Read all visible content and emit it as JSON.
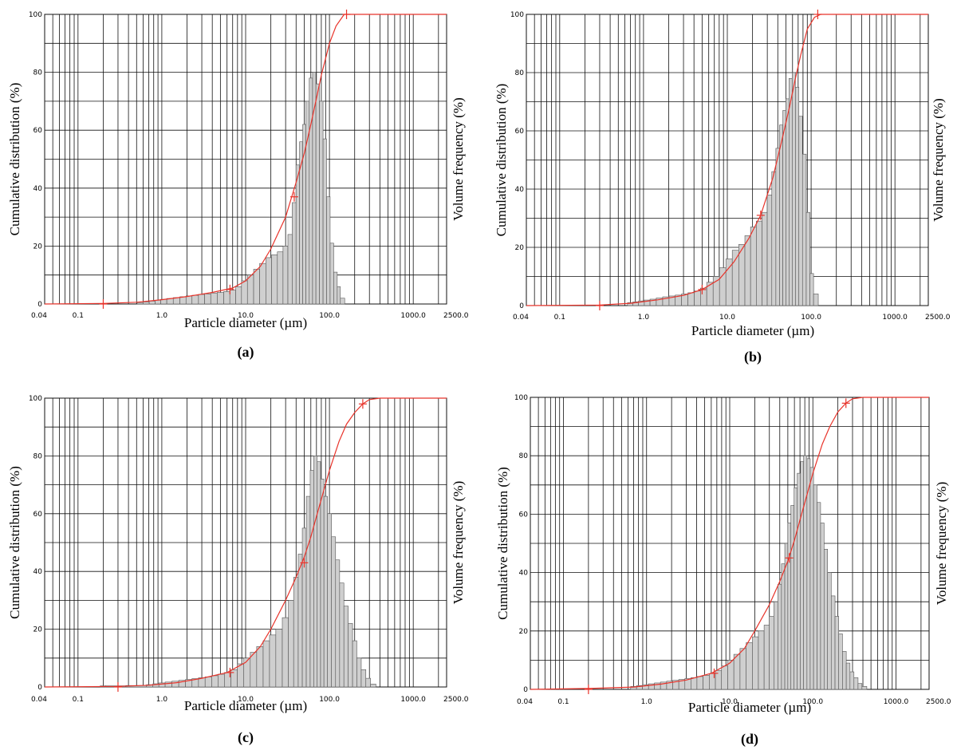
{
  "figure": {
    "panels": [
      "(a)",
      "(b)",
      "(c)",
      "(d)"
    ]
  },
  "chart_data": [
    {
      "label": "(a)",
      "type": "bar",
      "xscale": "log",
      "xlim": [
        0.04,
        2500.0
      ],
      "ylim": [
        0,
        100
      ],
      "xlabel": "Particle diameter (µm)",
      "ylabel": "Cumulative distribution (%)",
      "y2label": "Volume frequency (%)",
      "xticklabels": [
        "0.04",
        "0.1",
        "1.0",
        "10.0",
        "100.0",
        "1000.0",
        "2500.0"
      ],
      "yticklabels": [
        "0",
        "20",
        "40",
        "60",
        "80",
        "100"
      ],
      "grid": true,
      "bars": {
        "x": [
          0.55,
          0.65,
          0.77,
          0.9,
          1.05,
          1.25,
          1.5,
          1.8,
          2.1,
          2.5,
          3.0,
          3.5,
          4.2,
          5.0,
          6.0,
          7.0,
          8.3,
          9.6,
          11.5,
          13.5,
          16,
          19,
          22,
          26,
          30,
          34,
          38,
          42,
          46,
          50,
          55,
          60,
          66,
          72,
          80,
          88,
          97,
          107,
          118,
          130,
          140
        ],
        "values": [
          0.5,
          0.7,
          1,
          1.3,
          1.6,
          1.9,
          2.2,
          2.5,
          2.8,
          3,
          3.3,
          3.5,
          3.8,
          4,
          4.3,
          4.8,
          6,
          8,
          10,
          12,
          14,
          16,
          17,
          18,
          20,
          24,
          35,
          48,
          56,
          62,
          70,
          78,
          80,
          76,
          70,
          57,
          37,
          21,
          11,
          6,
          2
        ]
      },
      "cumulative": {
        "x": [
          0.04,
          0.2,
          0.5,
          1,
          2,
          4,
          7,
          10,
          15,
          20,
          30,
          40,
          50,
          60,
          70,
          80,
          100,
          120,
          150,
          200,
          2500
        ],
        "y": [
          0,
          0.2,
          0.6,
          1.5,
          2.6,
          4,
          5.5,
          8,
          13,
          19,
          30,
          42,
          52,
          62,
          71,
          79,
          90,
          96,
          100,
          100,
          100
        ]
      },
      "markers": {
        "x": [
          0.2,
          6.5,
          38,
          160
        ],
        "y": [
          0,
          5,
          37,
          100
        ]
      }
    },
    {
      "label": "(b)",
      "type": "bar",
      "xscale": "log",
      "xlim": [
        0.04,
        2500.0
      ],
      "ylim": [
        0,
        100
      ],
      "xlabel": "Particle diameter (µm)",
      "ylabel": "Cumulative distribution (%)",
      "y2label": "Volume frequency (%)",
      "xticklabels": [
        "0.04",
        "0.1",
        "1.0",
        "10.0",
        "100.0",
        "1000.0",
        "2500.0"
      ],
      "yticklabels": [
        "0",
        "20",
        "40",
        "60",
        "80",
        "100"
      ],
      "grid": true,
      "bars": {
        "x": [
          0.7,
          0.8,
          0.95,
          1.1,
          1.3,
          1.55,
          1.85,
          2.2,
          2.6,
          3.1,
          3.7,
          4.4,
          5.2,
          6.2,
          7.4,
          8.8,
          10.5,
          12.5,
          15,
          17.5,
          20.5,
          24,
          28,
          32,
          36,
          40,
          44,
          48,
          52,
          57,
          62,
          68,
          75,
          83,
          92,
          102,
          112
        ],
        "values": [
          1,
          1.3,
          1.6,
          1.9,
          2.2,
          2.6,
          3,
          3.3,
          3.6,
          4,
          4.4,
          5,
          6,
          8,
          10,
          13,
          16,
          19,
          21,
          24,
          27,
          29,
          32,
          38,
          46,
          54,
          62,
          67,
          71,
          78,
          80,
          75,
          65,
          52,
          32,
          11,
          4
        ]
      },
      "cumulative": {
        "x": [
          0.04,
          0.3,
          0.7,
          1.5,
          3,
          5,
          8,
          12,
          18,
          25,
          35,
          45,
          55,
          65,
          75,
          90,
          110,
          130,
          2500
        ],
        "y": [
          0,
          0.2,
          0.8,
          2,
          3.5,
          5.5,
          9,
          15,
          23,
          31,
          44,
          57,
          68,
          78,
          86,
          95,
          99,
          100,
          100
        ]
      },
      "markers": {
        "x": [
          0.3,
          5,
          25,
          120
        ],
        "y": [
          0,
          5.5,
          31,
          100
        ]
      }
    },
    {
      "label": "(c)",
      "type": "bar",
      "xscale": "log",
      "xlim": [
        0.04,
        2500.0
      ],
      "ylim": [
        0,
        100
      ],
      "xlabel": "Particle diameter (µm)",
      "ylabel": "Cumulative distribution (%)",
      "y2label": "Volume frequency (%)",
      "xticklabels": [
        "0.04",
        "0.1",
        "1.0",
        "10.0",
        "100.0",
        "1000.0",
        "2500.0"
      ],
      "yticklabels": [
        "0",
        "20",
        "40",
        "60",
        "80",
        "100"
      ],
      "grid": true,
      "bars": {
        "x": [
          0.2,
          0.23,
          0.6,
          0.72,
          0.85,
          1.0,
          1.2,
          1.45,
          1.75,
          2.1,
          2.5,
          3.0,
          3.6,
          4.3,
          5.1,
          6.1,
          7.3,
          8.7,
          10.4,
          12.4,
          14.8,
          17.7,
          21,
          25,
          30,
          35,
          40,
          45,
          50,
          56,
          62,
          68,
          75,
          82,
          90,
          100,
          112,
          125,
          140,
          158,
          178,
          200,
          225,
          255,
          290,
          330
        ],
        "values": [
          0.4,
          0.4,
          0.5,
          0.8,
          1.1,
          1.4,
          1.7,
          2,
          2.3,
          2.6,
          2.9,
          3.2,
          3.5,
          3.9,
          4.4,
          5,
          6,
          8,
          10,
          12,
          14,
          16,
          18,
          20,
          24,
          30,
          38,
          46,
          55,
          66,
          75,
          80,
          78,
          72,
          66,
          60,
          52,
          44,
          36,
          28,
          22,
          16,
          10,
          6,
          3,
          1
        ]
      },
      "cumulative": {
        "x": [
          0.04,
          0.3,
          0.7,
          1.5,
          3,
          6,
          10,
          15,
          20,
          30,
          40,
          50,
          60,
          70,
          80,
          100,
          130,
          160,
          200,
          250,
          300,
          400,
          2500
        ],
        "y": [
          0,
          0.2,
          0.6,
          1.5,
          3,
          5,
          8.5,
          14,
          20,
          30,
          38,
          45,
          52,
          59,
          65,
          75,
          85,
          91,
          95,
          98,
          99.5,
          100,
          100
        ]
      },
      "markers": {
        "x": [
          0.3,
          6.5,
          50,
          250
        ],
        "y": [
          0,
          5,
          43,
          98
        ]
      }
    },
    {
      "label": "(d)",
      "type": "bar",
      "xscale": "log",
      "xlim": [
        0.04,
        2500.0
      ],
      "ylim": [
        0,
        100
      ],
      "xlabel": "Particle diameter (µm)",
      "ylabel": "Cumulative distribution (%)",
      "y2label": "Volume frequency (%)",
      "xticklabels": [
        "0.04",
        "0.1",
        "1.0",
        "10.0",
        "100.0",
        "1000.0",
        "2500.0"
      ],
      "yticklabels": [
        "0",
        "20",
        "40",
        "60",
        "80",
        "100"
      ],
      "grid": true,
      "bars": {
        "x": [
          0.7,
          0.82,
          0.97,
          1.15,
          1.35,
          1.6,
          1.9,
          2.25,
          2.65,
          3.15,
          3.7,
          4.4,
          5.2,
          6.2,
          7.3,
          8.7,
          10.3,
          12.2,
          14.5,
          17.2,
          20.4,
          24,
          28,
          32,
          36,
          40,
          44,
          48,
          52,
          57,
          62,
          68,
          74,
          81,
          89,
          97,
          107,
          118,
          130,
          143,
          158,
          175,
          195,
          215,
          240,
          265,
          295,
          330,
          370,
          410
        ],
        "values": [
          1,
          1.3,
          1.6,
          1.9,
          2.2,
          2.5,
          2.8,
          3.1,
          3.4,
          3.7,
          4,
          4.4,
          4.8,
          5.4,
          6.5,
          8,
          10,
          12,
          14,
          16,
          18,
          20,
          22,
          25,
          30,
          36,
          43,
          50,
          57,
          63,
          69,
          74,
          78,
          80,
          79,
          76,
          70,
          64,
          57,
          48,
          40,
          32,
          25,
          19,
          13,
          9,
          6,
          4,
          2,
          1
        ]
      },
      "cumulative": {
        "x": [
          0.04,
          0.2,
          0.7,
          1.5,
          3,
          6,
          10,
          15,
          20,
          30,
          40,
          50,
          60,
          70,
          80,
          100,
          130,
          160,
          200,
          250,
          300,
          400,
          2500
        ],
        "y": [
          0,
          0.3,
          0.8,
          1.8,
          3.2,
          5.5,
          9,
          14,
          20,
          29,
          37,
          44,
          51,
          58,
          64,
          74,
          84,
          90,
          95,
          98,
          99.5,
          100,
          100
        ]
      },
      "markers": {
        "x": [
          0.2,
          6.5,
          52,
          250
        ],
        "y": [
          0,
          5.5,
          45,
          98
        ]
      }
    }
  ]
}
